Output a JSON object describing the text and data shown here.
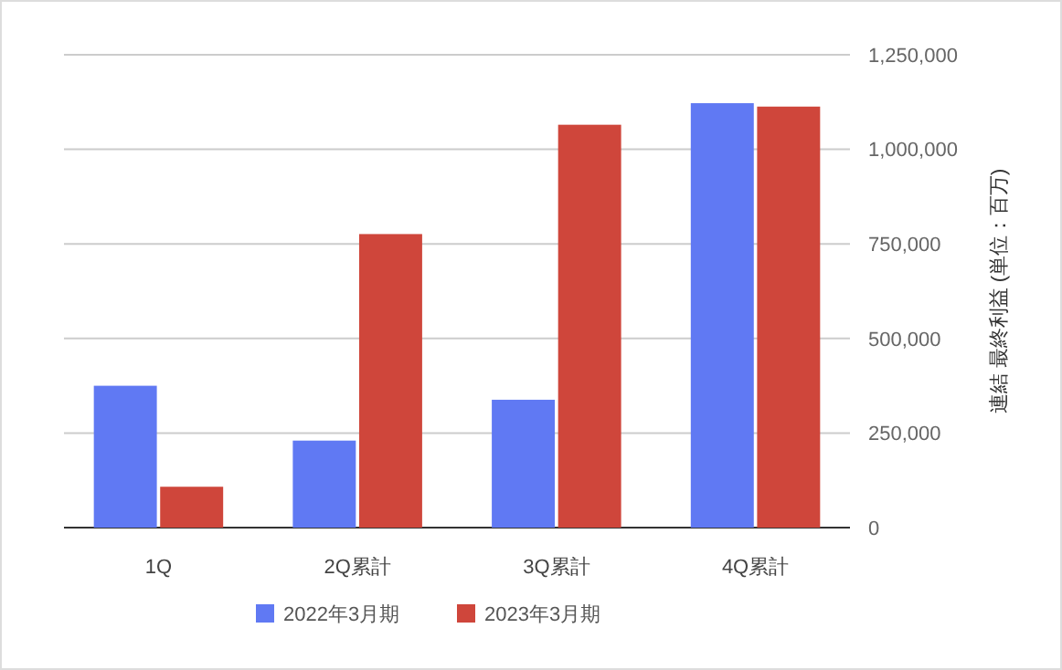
{
  "chart_data": {
    "type": "bar",
    "categories": [
      "1Q",
      "2Q累計",
      "3Q累計",
      "4Q累計"
    ],
    "series": [
      {
        "name": "2022年3月期",
        "color": "#6079f3",
        "values": [
          375000,
          230000,
          338000,
          1122000
        ]
      },
      {
        "name": "2023年3月期",
        "color": "#cf463b",
        "values": [
          108000,
          776000,
          1065000,
          1113000
        ]
      }
    ],
    "ylabel": "連結 最終利益 (単位：百万)",
    "ylim": [
      0,
      1250000
    ],
    "yticks": [
      {
        "value": 0,
        "label": "0"
      },
      {
        "value": 250000,
        "label": "250,000"
      },
      {
        "value": 500000,
        "label": "500,000"
      },
      {
        "value": 750000,
        "label": "750,000"
      },
      {
        "value": 1000000,
        "label": "1,000,000"
      },
      {
        "value": 1250000,
        "label": "1,250,000"
      }
    ],
    "grid": "y",
    "legend": "bottom"
  }
}
